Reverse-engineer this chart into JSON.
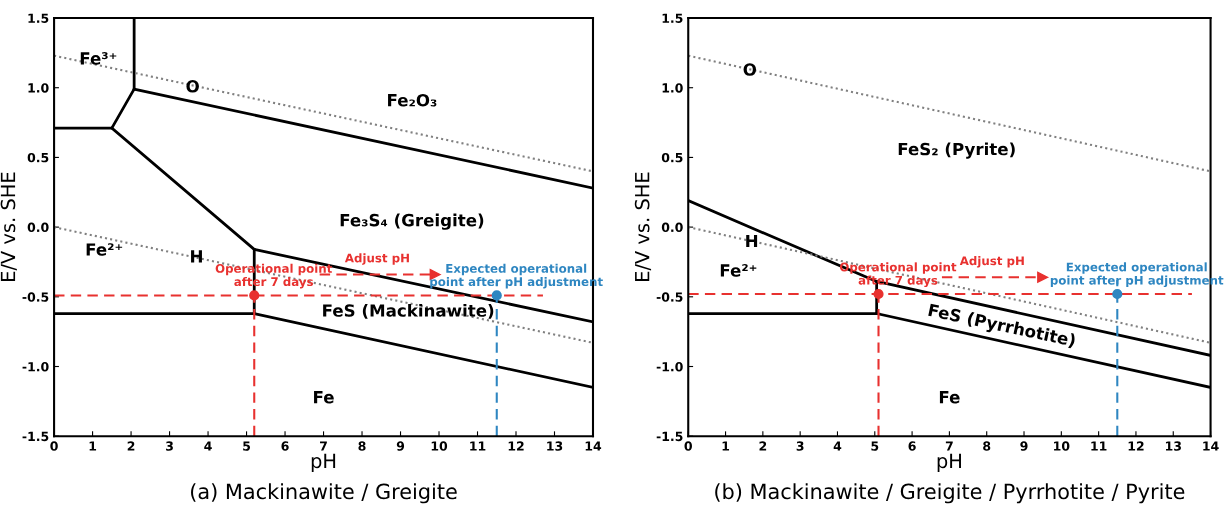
{
  "chart_data": [
    {
      "type": "line",
      "title": "(a) Mackinawite / Greigite",
      "xlabel": "pH",
      "ylabel": "E/V vs. SHE",
      "xlim": [
        0,
        14
      ],
      "xticks": [
        0,
        1,
        2,
        3,
        4,
        5,
        6,
        7,
        8,
        9,
        10,
        11,
        12,
        13,
        14
      ],
      "ylim": [
        -1.5,
        1.5
      ],
      "yticks": [
        {
          "value": -1.5,
          "label": "-1.5"
        },
        {
          "value": -1.0,
          "label": "-1.0"
        },
        {
          "value": -0.5,
          "label": "-0.5"
        },
        {
          "value": 0.0,
          "label": "0.0"
        },
        {
          "value": 0.5,
          "label": "0.5"
        },
        {
          "value": 1.0,
          "label": "1.0"
        },
        {
          "value": 1.5,
          "label": "1.5"
        }
      ],
      "grid": false,
      "legend": false,
      "series": [
        {
          "color": "#000000",
          "x": [
            2.08,
            2.08
          ],
          "values": [
            1.5,
            0.99
          ]
        },
        {
          "color": "#000000",
          "x": [
            2.08,
            14
          ],
          "values": [
            0.99,
            0.28
          ]
        },
        {
          "color": "#000000",
          "x": [
            0,
            1.5,
            2.08
          ],
          "values": [
            0.71,
            0.71,
            0.99
          ]
        },
        {
          "color": "#000000",
          "x": [
            1.5,
            5.2,
            14
          ],
          "values": [
            0.71,
            -0.16,
            -0.68
          ]
        },
        {
          "color": "#000000",
          "x": [
            0,
            5.2,
            5.2
          ],
          "values": [
            -0.62,
            -0.62,
            -0.16
          ]
        },
        {
          "color": "#000000",
          "x": [
            5.2,
            14
          ],
          "values": [
            -0.62,
            -1.15
          ]
        },
        {
          "color": "#808080",
          "line_style": "dotted",
          "x": [
            0,
            14
          ],
          "values": [
            1.23,
            0.4
          ]
        },
        {
          "color": "#808080",
          "line_style": "dotted",
          "x": [
            0,
            14
          ],
          "values": [
            0.0,
            -0.83
          ]
        },
        {
          "color": "#e8312f",
          "line_style": "dashed",
          "x": [
            0,
            12.7
          ],
          "values": [
            -0.49,
            -0.49
          ]
        },
        {
          "color": "#e8312f",
          "line_style": "dashed",
          "x": [
            5.2,
            5.2
          ],
          "values": [
            -1.5,
            -0.49
          ]
        },
        {
          "color": "#2e86c1",
          "line_style": "dashed",
          "x": [
            11.5,
            11.5
          ],
          "values": [
            -1.5,
            -0.4
          ]
        },
        {
          "name": "Adjust pH",
          "color": "#e8312f",
          "line_style": "dashed",
          "marker": "triangle",
          "x": [
            6.9,
            9.9
          ],
          "values": [
            -0.34,
            -0.34
          ]
        },
        {
          "type": "scatter",
          "color": "#e8312f",
          "marker": "circle",
          "x": [
            5.2
          ],
          "values": [
            -0.49
          ]
        },
        {
          "type": "scatter",
          "name": "Expected operational\npoint after pH adjustment",
          "color": "#2e86c1",
          "marker": "circle",
          "x": [
            11.5
          ],
          "values": [
            -0.49
          ]
        }
      ],
      "annotations": [
        {
          "text": "Operational point\nafter 7 days",
          "x": 5.2,
          "y": -0.49
        },
        {
          "text": "Fe³⁺",
          "x": 1.15,
          "y": 1.2
        },
        {
          "text": "O",
          "x": 3.6,
          "y": 1.0
        },
        "Fe₂O₃",
        "Fe₃S₄ (Greigite)",
        "Fe²⁺",
        {
          "text": "H",
          "x": 3.7,
          "y": -0.22
        },
        "FeS (Mackinawite)",
        "Fe"
      ]
    },
    {
      "type": "line",
      "title": "(b) Mackinawite / Greigite / Pyrrhotite / Pyrite",
      "xlabel": "pH",
      "ylabel": "E/V vs. SHE",
      "xlim": [
        0,
        14
      ],
      "xticks": [
        0,
        1,
        2,
        3,
        4,
        5,
        6,
        7,
        8,
        9,
        10,
        11,
        12,
        13,
        14
      ],
      "ylim": [
        -1.5,
        1.5
      ],
      "yticks": [
        {
          "value": -1.5,
          "label": "-1.5"
        },
        {
          "value": -1.0,
          "label": "-1.0"
        },
        {
          "value": -0.5,
          "label": "-0.5"
        },
        {
          "value": 0.0,
          "label": "0.0"
        },
        {
          "value": 0.5,
          "label": "0.5"
        },
        {
          "value": 1.0,
          "label": "1.0"
        },
        {
          "value": 1.5,
          "label": "1.5"
        }
      ],
      "grid": false,
      "legend": false,
      "series": [
        {
          "color": "#000000",
          "x": [
            0,
            5.05,
            14
          ],
          "values": [
            0.19,
            -0.39,
            -0.92
          ]
        },
        {
          "color": "#000000",
          "x": [
            0,
            5.05,
            5.05
          ],
          "values": [
            -0.62,
            -0.62,
            -0.39
          ]
        },
        {
          "color": "#000000",
          "x": [
            5.05,
            14
          ],
          "values": [
            -0.62,
            -1.15
          ]
        },
        {
          "color": "#808080",
          "line_style": "dotted",
          "x": [
            0,
            14
          ],
          "values": [
            1.23,
            0.4
          ]
        },
        {
          "color": "#808080",
          "line_style": "dotted",
          "x": [
            0,
            14
          ],
          "values": [
            0.0,
            -0.83
          ]
        },
        {
          "color": "#e8312f",
          "line_style": "dashed",
          "x": [
            0,
            13.5
          ],
          "values": [
            -0.48,
            -0.48
          ]
        },
        {
          "color": "#e8312f",
          "line_style": "dashed",
          "x": [
            5.1,
            5.1
          ],
          "values": [
            -1.5,
            -0.48
          ]
        },
        {
          "color": "#2e86c1",
          "line_style": "dashed",
          "x": [
            11.5,
            11.5
          ],
          "values": [
            -1.5,
            -0.38
          ]
        },
        {
          "name": "Adjust pH",
          "color": "#e8312f",
          "line_style": "dashed",
          "marker": "triangle",
          "x": [
            6.8,
            9.5
          ],
          "values": [
            -0.36,
            -0.36
          ]
        },
        {
          "type": "scatter",
          "color": "#e8312f",
          "marker": "circle",
          "x": [
            5.1
          ],
          "values": [
            -0.48
          ]
        },
        {
          "type": "scatter",
          "name": "Expected operational\npoint after pH adjustment",
          "color": "#2e86c1",
          "marker": "circle",
          "x": [
            11.5
          ],
          "values": [
            -0.48
          ]
        }
      ],
      "annotations": [
        {
          "text": "Operational point\nafter 7 days",
          "x": 5.1,
          "y": -0.48
        },
        {
          "text": "O",
          "x": 1.65,
          "y": 1.12
        },
        "FeS₂ (Pyrite)",
        {
          "text": "H",
          "x": 1.7,
          "y": -0.11
        },
        "Fe²⁺",
        "FeS (Pyrrhotite)",
        "Fe"
      ]
    }
  ]
}
